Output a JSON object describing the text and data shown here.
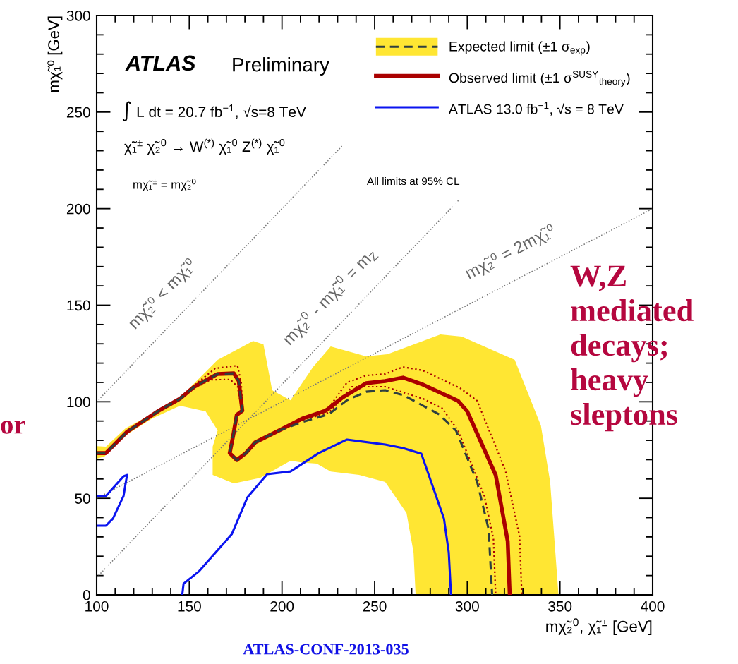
{
  "chart_data": {
    "type": "line",
    "xlabel": "mχ̃₂$^{0}$, χ̃₁$^{±}$ [GeV]",
    "ylabel": "mχ̃₁⁰ [GeV]",
    "xlim": [
      100,
      400
    ],
    "ylim": [
      0,
      300
    ],
    "xticks": [
      100,
      150,
      200,
      250,
      300,
      350,
      400
    ],
    "yticks": [
      0,
      50,
      100,
      150,
      200,
      250,
      300
    ],
    "grid": false,
    "legend": "top right",
    "series": [
      {
        "type": "area",
        "name": "Expected limit (±1 σ$_{exp}$)",
        "color": "#ffe633",
        "x": [
          100,
          105,
          115.6,
          143.5,
          165.3,
          184.4,
          190,
          194.7,
          204.6,
          216.8,
          226.3,
          245.4,
          256.9,
          285.5,
          297,
          325.6,
          339.7,
          344.7,
          349.2,
          272.1,
          271,
          267.2,
          255.7,
          241.6,
          226.3,
          218.7,
          211,
          204.6,
          188.2,
          174,
          162.6,
          162.6,
          165.3,
          158.8,
          145,
          129.8,
          115.6,
          104.2,
          100
        ],
        "values": [
          77,
          76.7,
          86.2,
          100.8,
          121.7,
          131.5,
          129.7,
          106,
          100.8,
          118,
          128.6,
          123.5,
          124.6,
          134.8,
          133.7,
          121.7,
          87.7,
          58.5,
          0,
          0,
          21.9,
          42.4,
          58.5,
          62.1,
          63.9,
          68,
          68.5,
          69.4,
          60.6,
          57.7,
          62.1,
          76.7,
          85.1,
          95,
          97.9,
          91.3,
          82.6,
          71.6,
          70.5
        ]
      },
      {
        "color": "#777777",
        "line_style": "dotted",
        "x": [
          100,
          233
        ],
        "values": [
          100,
          233
        ]
      },
      {
        "color": "#777777",
        "line_style": "dotted",
        "x": [
          100,
          295.8
        ],
        "values": [
          9,
          204.8
        ]
      },
      {
        "color": "#777777",
        "line_style": "dotted",
        "x": [
          100,
          400
        ],
        "values": [
          50,
          200
        ]
      },
      {
        "color": "#2f3f3f",
        "line_style": "dashed",
        "x": [
          100,
          105,
          116.4,
          133.6,
          145,
          152.7,
          165.3,
          174,
          176.7,
          178.6,
          175.6,
          173.7,
          171.8,
          175.6,
          180.5,
          185.5,
          198.5,
          211,
          225.2,
          235.1,
          245.4,
          255.7,
          265.6,
          284.7,
          293.9,
          305.3,
          311.5,
          313.4
        ],
        "values": [
          73.4,
          73.4,
          84.4,
          95.4,
          101.6,
          107.8,
          114.4,
          114.7,
          110.7,
          95.4,
          93.2,
          82.6,
          73.4,
          69.8,
          73.4,
          78.9,
          85.1,
          89.5,
          93.5,
          100.8,
          105.2,
          106,
          103.4,
          93.5,
          85.1,
          58.5,
          34,
          0
        ]
      },
      {
        "color": "#aa0000",
        "line_style": "dotted",
        "x": [
          100,
          105,
          116.4,
          133.6,
          145,
          152.7,
          164,
          176,
          178,
          178.6,
          175.6,
          173.7,
          171.8,
          175.6,
          180.5,
          185.5,
          198.5,
          211,
          225.2,
          235.1,
          245.4,
          255.7,
          265.3,
          276,
          296.2,
          305.3,
          320.6,
          328.2,
          329.4
        ],
        "values": [
          73.4,
          73.4,
          84.4,
          95.4,
          101.6,
          108.5,
          117.3,
          118.7,
          110,
          95.4,
          93.2,
          82.6,
          73.4,
          69.8,
          73.4,
          78.9,
          85.1,
          91.3,
          96.8,
          110,
          113.6,
          114.4,
          118,
          116.2,
          107,
          100.5,
          64.3,
          30.3,
          0
        ]
      },
      {
        "color": "#aa0000",
        "line_style": "dotted",
        "x": [
          100,
          105,
          116.4,
          133.6,
          145,
          152.7,
          161.5,
          172,
          176,
          178.4,
          175.6,
          173.7,
          171.8,
          175.6,
          180.5,
          185.5,
          198.5,
          211,
          225.2,
          237.8,
          255.7,
          276,
          286.3,
          295,
          309.2,
          314.1,
          315.3
        ],
        "values": [
          73.4,
          73.4,
          84.4,
          95.4,
          101.6,
          107,
          111.4,
          111.5,
          108,
          95.4,
          93.2,
          82.6,
          73.4,
          69.8,
          73.4,
          78.9,
          85.1,
          90.5,
          94.3,
          107.8,
          107.8,
          101.6,
          96.8,
          85.1,
          51.2,
          29.2,
          0
        ]
      },
      {
        "name": "Observed limit (±1 σ$^{SUSY}$$_{theory}$)",
        "color": "#aa0000",
        "line_style": "solid",
        "x": [
          100,
          105,
          116.4,
          133.6,
          145,
          152.7,
          165.3,
          174,
          176.7,
          178.6,
          175.6,
          173.7,
          171.8,
          175.6,
          180.5,
          185.5,
          198.5,
          211,
          223.7,
          232.8,
          245.4,
          255.7,
          265.3,
          276,
          295,
          300,
          315.3,
          321.8,
          322.9
        ],
        "values": [
          73.4,
          73.4,
          84.4,
          95.4,
          101.6,
          107.8,
          114.4,
          114.7,
          110.7,
          95.4,
          93.2,
          82.6,
          73.4,
          69.8,
          73.4,
          78.9,
          85.1,
          91.3,
          95.4,
          102.3,
          109.6,
          110.7,
          112.5,
          108.9,
          100.5,
          95,
          62.1,
          27.8,
          0
        ]
      },
      {
        "name": "ATLAS 13.0 fb$^{−1}$, √s = 8 TeV",
        "color": "#0a14f0",
        "line_style": "solid",
        "x": [
          146.2,
          146.9,
          155,
          172.9,
          181.3,
          192,
          204.6,
          219.8,
          235.1,
          255.7,
          265.3,
          275.2,
          287.4,
          290,
          291.2
        ],
        "values": [
          0,
          5.8,
          12,
          31.4,
          50.4,
          62.5,
          63.9,
          73.4,
          80.4,
          77.8,
          76,
          73.1,
          39.5,
          21.9,
          0
        ]
      },
      {
        "color": "#0a14f0",
        "line_style": "solid",
        "x": [
          100,
          105,
          114.5,
          116.4,
          114.5,
          108.8,
          105,
          100
        ],
        "values": [
          51.2,
          51.2,
          61.4,
          62.1,
          51.2,
          39.5,
          35.8,
          35.8
        ]
      }
    ],
    "annotations": [
      "ATLAS",
      "Preliminary",
      "∫ L dt = 20.7 fb$^{−1}$, √s=8 TeV",
      "χ̃₁$^{±}$ χ̃₂$^{0}$ → W$^{(*)}$ χ̃₁$^{0}$ Z$^{(*)}$ χ̃₁$^{0}$",
      "mχ̃₁$^{±}$ = mχ̃₂$^{0}$",
      "All limits at 95% CL",
      {
        "text": "mχ̃₂⁰ < mχ̃₁⁰",
        "x": 146,
        "y": 146
      },
      {
        "text": "mχ̃₂$^{0}$ - mχ̃₁$^{0}$ = m$_{Z}$",
        "x": 236,
        "y": 145
      },
      {
        "text": "mχ̃₂⁰ = 2mχ̃₁⁰",
        "x": 330,
        "y": 165
      },
      "W,Z\nmediated\ndecays;\nheavy\nsleptons",
      "or",
      "ATLAS-CONF-2013-035"
    ]
  }
}
